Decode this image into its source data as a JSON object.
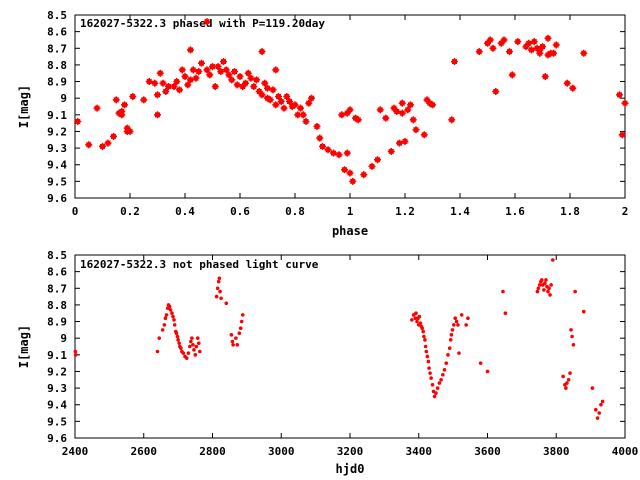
{
  "chart_data": [
    {
      "type": "scatter",
      "title": "162027-5322.3 phased with P=119.20day",
      "xlabel": "phase",
      "ylabel": "I[mag]",
      "xlim": [
        0,
        2
      ],
      "ylim": [
        8.5,
        9.6
      ],
      "y_inverted": true,
      "x_ticks": [
        "0",
        "0.2",
        "0.4",
        "0.6",
        "0.8",
        "1",
        "1.2",
        "1.4",
        "1.6",
        "1.8",
        "2"
      ],
      "y_ticks": [
        "8.5",
        "8.6",
        "8.7",
        "8.8",
        "8.9",
        "9",
        "9.1",
        "9.2",
        "9.3",
        "9.4",
        "9.5",
        "9.6"
      ],
      "grid": false,
      "legend_position": "top-left",
      "color": "#ff0000",
      "marker": "star",
      "points": [
        [
          0.01,
          9.14
        ],
        [
          0.05,
          9.28
        ],
        [
          0.08,
          9.06
        ],
        [
          0.1,
          9.29
        ],
        [
          0.12,
          9.27
        ],
        [
          0.14,
          9.23
        ],
        [
          0.15,
          9.01
        ],
        [
          0.16,
          9.09
        ],
        [
          0.17,
          9.1
        ],
        [
          0.17,
          9.08
        ],
        [
          0.18,
          9.04
        ],
        [
          0.19,
          9.2
        ],
        [
          0.19,
          9.18
        ],
        [
          0.2,
          9.2
        ],
        [
          0.21,
          8.99
        ],
        [
          0.25,
          9.01
        ],
        [
          0.27,
          8.9
        ],
        [
          0.29,
          8.91
        ],
        [
          0.3,
          9.1
        ],
        [
          0.3,
          8.98
        ],
        [
          0.31,
          8.85
        ],
        [
          0.32,
          8.91
        ],
        [
          0.33,
          8.96
        ],
        [
          0.34,
          8.93
        ],
        [
          0.36,
          8.93
        ],
        [
          0.37,
          8.9
        ],
        [
          0.38,
          8.95
        ],
        [
          0.39,
          8.83
        ],
        [
          0.4,
          8.87
        ],
        [
          0.41,
          8.92
        ],
        [
          0.42,
          8.89
        ],
        [
          0.42,
          8.71
        ],
        [
          0.43,
          8.83
        ],
        [
          0.44,
          8.88
        ],
        [
          0.45,
          8.84
        ],
        [
          0.46,
          8.79
        ],
        [
          0.48,
          8.83
        ],
        [
          0.48,
          8.54
        ],
        [
          0.49,
          8.86
        ],
        [
          0.5,
          8.81
        ],
        [
          0.51,
          8.93
        ],
        [
          0.52,
          8.81
        ],
        [
          0.53,
          8.84
        ],
        [
          0.54,
          8.78
        ],
        [
          0.55,
          8.83
        ],
        [
          0.56,
          8.86
        ],
        [
          0.57,
          8.89
        ],
        [
          0.58,
          8.84
        ],
        [
          0.59,
          8.92
        ],
        [
          0.6,
          8.87
        ],
        [
          0.61,
          8.93
        ],
        [
          0.62,
          8.91
        ],
        [
          0.63,
          8.85
        ],
        [
          0.64,
          8.88
        ],
        [
          0.65,
          8.93
        ],
        [
          0.66,
          8.89
        ],
        [
          0.67,
          8.96
        ],
        [
          0.68,
          8.72
        ],
        [
          0.68,
          8.98
        ],
        [
          0.69,
          8.91
        ],
        [
          0.7,
          8.94
        ],
        [
          0.7,
          9.0
        ],
        [
          0.71,
          9.01
        ],
        [
          0.72,
          8.95
        ],
        [
          0.73,
          9.04
        ],
        [
          0.73,
          8.83
        ],
        [
          0.74,
          8.99
        ],
        [
          0.75,
          9.02
        ],
        [
          0.76,
          9.06
        ],
        [
          0.77,
          8.99
        ],
        [
          0.78,
          9.02
        ],
        [
          0.79,
          9.05
        ],
        [
          0.8,
          9.04
        ],
        [
          0.81,
          9.1
        ],
        [
          0.82,
          9.06
        ],
        [
          0.83,
          9.1
        ],
        [
          0.84,
          9.14
        ],
        [
          0.85,
          9.03
        ],
        [
          0.86,
          9.0
        ],
        [
          0.88,
          9.17
        ],
        [
          0.89,
          9.24
        ],
        [
          0.9,
          9.29
        ],
        [
          0.92,
          9.31
        ],
        [
          0.94,
          9.33
        ],
        [
          0.96,
          9.34
        ],
        [
          0.97,
          9.1
        ],
        [
          0.98,
          9.43
        ],
        [
          0.99,
          9.09
        ],
        [
          0.99,
          9.33
        ],
        [
          1.0,
          9.45
        ],
        [
          1.0,
          9.07
        ],
        [
          1.01,
          9.5
        ],
        [
          1.02,
          9.12
        ],
        [
          1.03,
          9.13
        ],
        [
          1.05,
          9.46
        ],
        [
          1.08,
          9.41
        ],
        [
          1.1,
          9.37
        ],
        [
          1.11,
          9.07
        ],
        [
          1.13,
          9.12
        ],
        [
          1.15,
          9.32
        ],
        [
          1.16,
          9.06
        ],
        [
          1.17,
          9.08
        ],
        [
          1.18,
          9.27
        ],
        [
          1.19,
          9.09
        ],
        [
          1.19,
          9.03
        ],
        [
          1.2,
          9.26
        ],
        [
          1.21,
          9.07
        ],
        [
          1.22,
          9.04
        ],
        [
          1.23,
          9.13
        ],
        [
          1.24,
          9.19
        ],
        [
          1.27,
          9.22
        ],
        [
          1.28,
          9.01
        ],
        [
          1.29,
          9.03
        ],
        [
          1.3,
          9.04
        ],
        [
          1.37,
          9.13
        ],
        [
          1.38,
          8.78
        ],
        [
          1.47,
          8.72
        ],
        [
          1.5,
          8.67
        ],
        [
          1.51,
          8.65
        ],
        [
          1.52,
          8.7
        ],
        [
          1.53,
          8.96
        ],
        [
          1.55,
          8.67
        ],
        [
          1.56,
          8.65
        ],
        [
          1.58,
          8.72
        ],
        [
          1.59,
          8.86
        ],
        [
          1.61,
          8.66
        ],
        [
          1.64,
          8.69
        ],
        [
          1.65,
          8.67
        ],
        [
          1.66,
          8.71
        ],
        [
          1.67,
          8.66
        ],
        [
          1.68,
          8.7
        ],
        [
          1.69,
          8.73
        ],
        [
          1.69,
          8.71
        ],
        [
          1.7,
          8.69
        ],
        [
          1.71,
          8.87
        ],
        [
          1.72,
          8.64
        ],
        [
          1.72,
          8.74
        ],
        [
          1.73,
          8.73
        ],
        [
          1.74,
          8.73
        ],
        [
          1.75,
          8.68
        ],
        [
          1.79,
          8.91
        ],
        [
          1.81,
          8.94
        ],
        [
          1.85,
          8.73
        ],
        [
          1.98,
          8.98
        ],
        [
          1.99,
          9.22
        ],
        [
          2.0,
          9.03
        ]
      ]
    },
    {
      "type": "scatter",
      "title": "162027-5322.3 not phased light curve",
      "xlabel": "hjd0",
      "ylabel": "I[mag]",
      "xlim": [
        2400,
        4000
      ],
      "ylim": [
        8.5,
        9.6
      ],
      "y_inverted": true,
      "x_ticks": [
        "2400",
        "2600",
        "2800",
        "3000",
        "3200",
        "3400",
        "3600",
        "3800",
        "4000"
      ],
      "y_ticks": [
        "8.5",
        "8.6",
        "8.7",
        "8.8",
        "8.9",
        "9",
        "9.1",
        "9.2",
        "9.3",
        "9.4",
        "9.5",
        "9.6"
      ],
      "grid": false,
      "legend_position": "top-left",
      "color": "#ff0000",
      "marker": "dot",
      "points": [
        [
          2401,
          9.08
        ],
        [
          2402,
          9.1
        ],
        [
          2640,
          9.08
        ],
        [
          2645,
          9.0
        ],
        [
          2655,
          8.95
        ],
        [
          2660,
          8.92
        ],
        [
          2663,
          8.88
        ],
        [
          2666,
          8.86
        ],
        [
          2670,
          8.82
        ],
        [
          2672,
          8.8
        ],
        [
          2675,
          8.81
        ],
        [
          2678,
          8.83
        ],
        [
          2682,
          8.85
        ],
        [
          2685,
          8.87
        ],
        [
          2688,
          8.89
        ],
        [
          2690,
          8.92
        ],
        [
          2693,
          8.96
        ],
        [
          2695,
          8.97
        ],
        [
          2698,
          8.99
        ],
        [
          2700,
          9.01
        ],
        [
          2703,
          9.03
        ],
        [
          2705,
          9.05
        ],
        [
          2708,
          9.06
        ],
        [
          2711,
          9.08
        ],
        [
          2715,
          9.09
        ],
        [
          2720,
          9.11
        ],
        [
          2725,
          9.12
        ],
        [
          2730,
          9.09
        ],
        [
          2734,
          9.05
        ],
        [
          2737,
          9.02
        ],
        [
          2740,
          9.0
        ],
        [
          2743,
          9.04
        ],
        [
          2746,
          9.07
        ],
        [
          2750,
          9.1
        ],
        [
          2753,
          9.05
        ],
        [
          2757,
          9.0
        ],
        [
          2760,
          9.03
        ],
        [
          2763,
          9.08
        ],
        [
          2812,
          8.75
        ],
        [
          2815,
          8.7
        ],
        [
          2818,
          8.66
        ],
        [
          2820,
          8.64
        ],
        [
          2822,
          8.72
        ],
        [
          2825,
          8.76
        ],
        [
          2840,
          8.79
        ],
        [
          2855,
          8.98
        ],
        [
          2858,
          9.02
        ],
        [
          2860,
          9.04
        ],
        [
          2868,
          9.0
        ],
        [
          2872,
          9.04
        ],
        [
          2878,
          8.97
        ],
        [
          2882,
          8.94
        ],
        [
          2885,
          8.9
        ],
        [
          2888,
          8.86
        ],
        [
          3380,
          8.89
        ],
        [
          3385,
          8.86
        ],
        [
          3390,
          8.88
        ],
        [
          3392,
          8.85
        ],
        [
          3395,
          8.9
        ],
        [
          3398,
          8.88
        ],
        [
          3400,
          8.92
        ],
        [
          3402,
          8.87
        ],
        [
          3405,
          8.91
        ],
        [
          3408,
          8.93
        ],
        [
          3410,
          8.94
        ],
        [
          3413,
          8.96
        ],
        [
          3415,
          8.99
        ],
        [
          3418,
          9.01
        ],
        [
          3420,
          9.05
        ],
        [
          3422,
          9.08
        ],
        [
          3425,
          9.11
        ],
        [
          3428,
          9.14
        ],
        [
          3430,
          9.18
        ],
        [
          3433,
          9.21
        ],
        [
          3436,
          9.24
        ],
        [
          3440,
          9.28
        ],
        [
          3443,
          9.32
        ],
        [
          3446,
          9.35
        ],
        [
          3450,
          9.33
        ],
        [
          3455,
          9.3
        ],
        [
          3460,
          9.27
        ],
        [
          3465,
          9.25
        ],
        [
          3470,
          9.22
        ],
        [
          3475,
          9.19
        ],
        [
          3480,
          9.15
        ],
        [
          3485,
          9.1
        ],
        [
          3490,
          9.06
        ],
        [
          3493,
          9.01
        ],
        [
          3495,
          8.98
        ],
        [
          3498,
          8.95
        ],
        [
          3502,
          8.92
        ],
        [
          3506,
          8.88
        ],
        [
          3510,
          8.9
        ],
        [
          3514,
          8.92
        ],
        [
          3517,
          9.09
        ],
        [
          3525,
          8.86
        ],
        [
          3538,
          8.92
        ],
        [
          3543,
          8.88
        ],
        [
          3580,
          9.15
        ],
        [
          3600,
          9.2
        ],
        [
          3645,
          8.72
        ],
        [
          3652,
          8.85
        ],
        [
          3745,
          8.72
        ],
        [
          3748,
          8.7
        ],
        [
          3752,
          8.68
        ],
        [
          3755,
          8.66
        ],
        [
          3758,
          8.65
        ],
        [
          3761,
          8.68
        ],
        [
          3764,
          8.71
        ],
        [
          3767,
          8.67
        ],
        [
          3770,
          8.65
        ],
        [
          3773,
          8.69
        ],
        [
          3776,
          8.72
        ],
        [
          3779,
          8.7
        ],
        [
          3782,
          8.74
        ],
        [
          3785,
          8.68
        ],
        [
          3790,
          8.53
        ],
        [
          3820,
          9.23
        ],
        [
          3825,
          9.28
        ],
        [
          3828,
          9.3
        ],
        [
          3831,
          9.27
        ],
        [
          3836,
          9.25
        ],
        [
          3840,
          9.21
        ],
        [
          3843,
          8.95
        ],
        [
          3846,
          8.99
        ],
        [
          3850,
          9.04
        ],
        [
          3855,
          8.72
        ],
        [
          3880,
          8.84
        ],
        [
          3905,
          9.3
        ],
        [
          3915,
          9.43
        ],
        [
          3920,
          9.48
        ],
        [
          3925,
          9.45
        ],
        [
          3930,
          9.4
        ],
        [
          3935,
          9.38
        ]
      ]
    }
  ]
}
